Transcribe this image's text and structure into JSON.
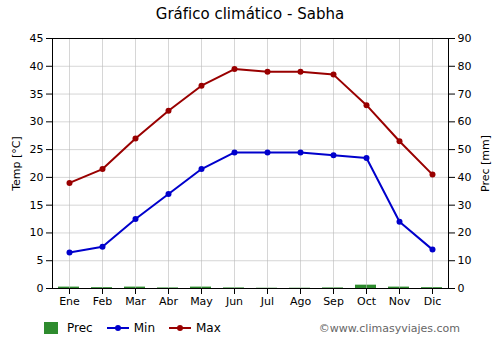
{
  "chart_data": {
    "type": "combo",
    "title": "Gráfico climático - Sabha",
    "categories": [
      "Ene",
      "Feb",
      "Mar",
      "Abr",
      "May",
      "Jun",
      "Jul",
      "Ago",
      "Sep",
      "Oct",
      "Nov",
      "Dic"
    ],
    "series": [
      {
        "name": "Prec",
        "type": "bar",
        "axis": "y2",
        "color": "#2e8b2e",
        "values": [
          0.5,
          0.3,
          0.5,
          0.2,
          0.5,
          0.2,
          0.1,
          0.1,
          0.2,
          1.2,
          0.5,
          0.3
        ]
      },
      {
        "name": "Min",
        "type": "line",
        "marker": "circle",
        "color": "#0000cc",
        "values": [
          6.5,
          7.5,
          12.5,
          17,
          21.5,
          24.5,
          24.5,
          24.5,
          24,
          23.5,
          12,
          7
        ]
      },
      {
        "name": "Max",
        "type": "line",
        "marker": "circle",
        "color": "#990000",
        "values": [
          19,
          21.5,
          27,
          32,
          36.5,
          39.5,
          39,
          39,
          38.5,
          33,
          26.5,
          20.5
        ]
      }
    ],
    "ylabel": "Temp [°C]",
    "y2label": "Prec [mm]",
    "ylim": [
      0,
      45
    ],
    "yticks": [
      0,
      5,
      10,
      15,
      20,
      25,
      30,
      35,
      40,
      45
    ],
    "y2lim": [
      0,
      90
    ],
    "y2ticks": [
      0,
      10,
      20,
      30,
      40,
      50,
      60,
      70,
      80,
      90
    ],
    "grid": true,
    "legend": "lower left",
    "annotations": [
      "©www.climasyviajes.com"
    ]
  }
}
